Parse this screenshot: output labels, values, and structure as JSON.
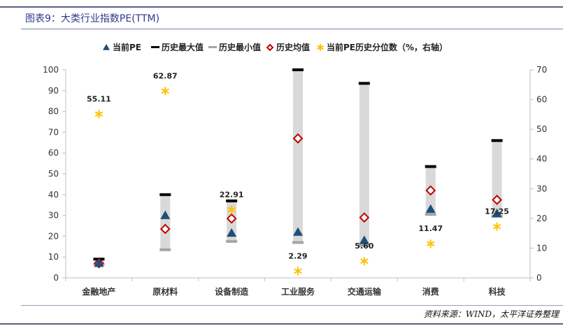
{
  "header": {
    "title": "图表9：大类行业指数PE(TTM)"
  },
  "footer": {
    "source": "资料来源：WIND，太平洋证券整理"
  },
  "colors": {
    "range_bar": "#d9d9d9",
    "current": "#1f4e79",
    "max": "#000000",
    "min": "#a6a6a6",
    "mean": "#c00000",
    "percentile": "#ffc000",
    "axis": "#bfbfbf"
  },
  "chart_data": {
    "type": "scatter",
    "categories": [
      "金融地产",
      "原材料",
      "设备制造",
      "工业服务",
      "交通运输",
      "消费",
      "科技"
    ],
    "ylim": [
      0,
      100
    ],
    "y_ticks": [
      0,
      10,
      20,
      30,
      40,
      50,
      60,
      70,
      80,
      90,
      100
    ],
    "y2lim": [
      0,
      70
    ],
    "y2_ticks": [
      0,
      10,
      20,
      30,
      40,
      50,
      60,
      70
    ],
    "legend_position": "top",
    "grid": false,
    "series": [
      {
        "name": "当前PE",
        "marker": "triangle",
        "axis": "left",
        "values": [
          7,
          30,
          21.5,
          22,
          18,
          33,
          31
        ]
      },
      {
        "name": "历史最大值",
        "marker": "dash",
        "axis": "left",
        "values": [
          9,
          40,
          37,
          100,
          93.5,
          53.5,
          66
        ]
      },
      {
        "name": "历史最小值",
        "marker": "dash",
        "axis": "left",
        "values": [
          6.5,
          13.5,
          17.5,
          17,
          15.5,
          30.5,
          29.5
        ]
      },
      {
        "name": "历史均值",
        "marker": "diamond",
        "axis": "left",
        "values": [
          7,
          23.5,
          28.5,
          67,
          29,
          42,
          37.5
        ]
      },
      {
        "name": "当前PE历史分位数（%，右轴）",
        "marker": "star",
        "axis": "right",
        "values": [
          55.11,
          62.87,
          22.91,
          2.29,
          5.6,
          11.47,
          17.25
        ],
        "labels": [
          "55.11",
          "62.87",
          "22.91",
          "2.29",
          "5.60",
          "11.47",
          "17.25"
        ]
      }
    ]
  }
}
